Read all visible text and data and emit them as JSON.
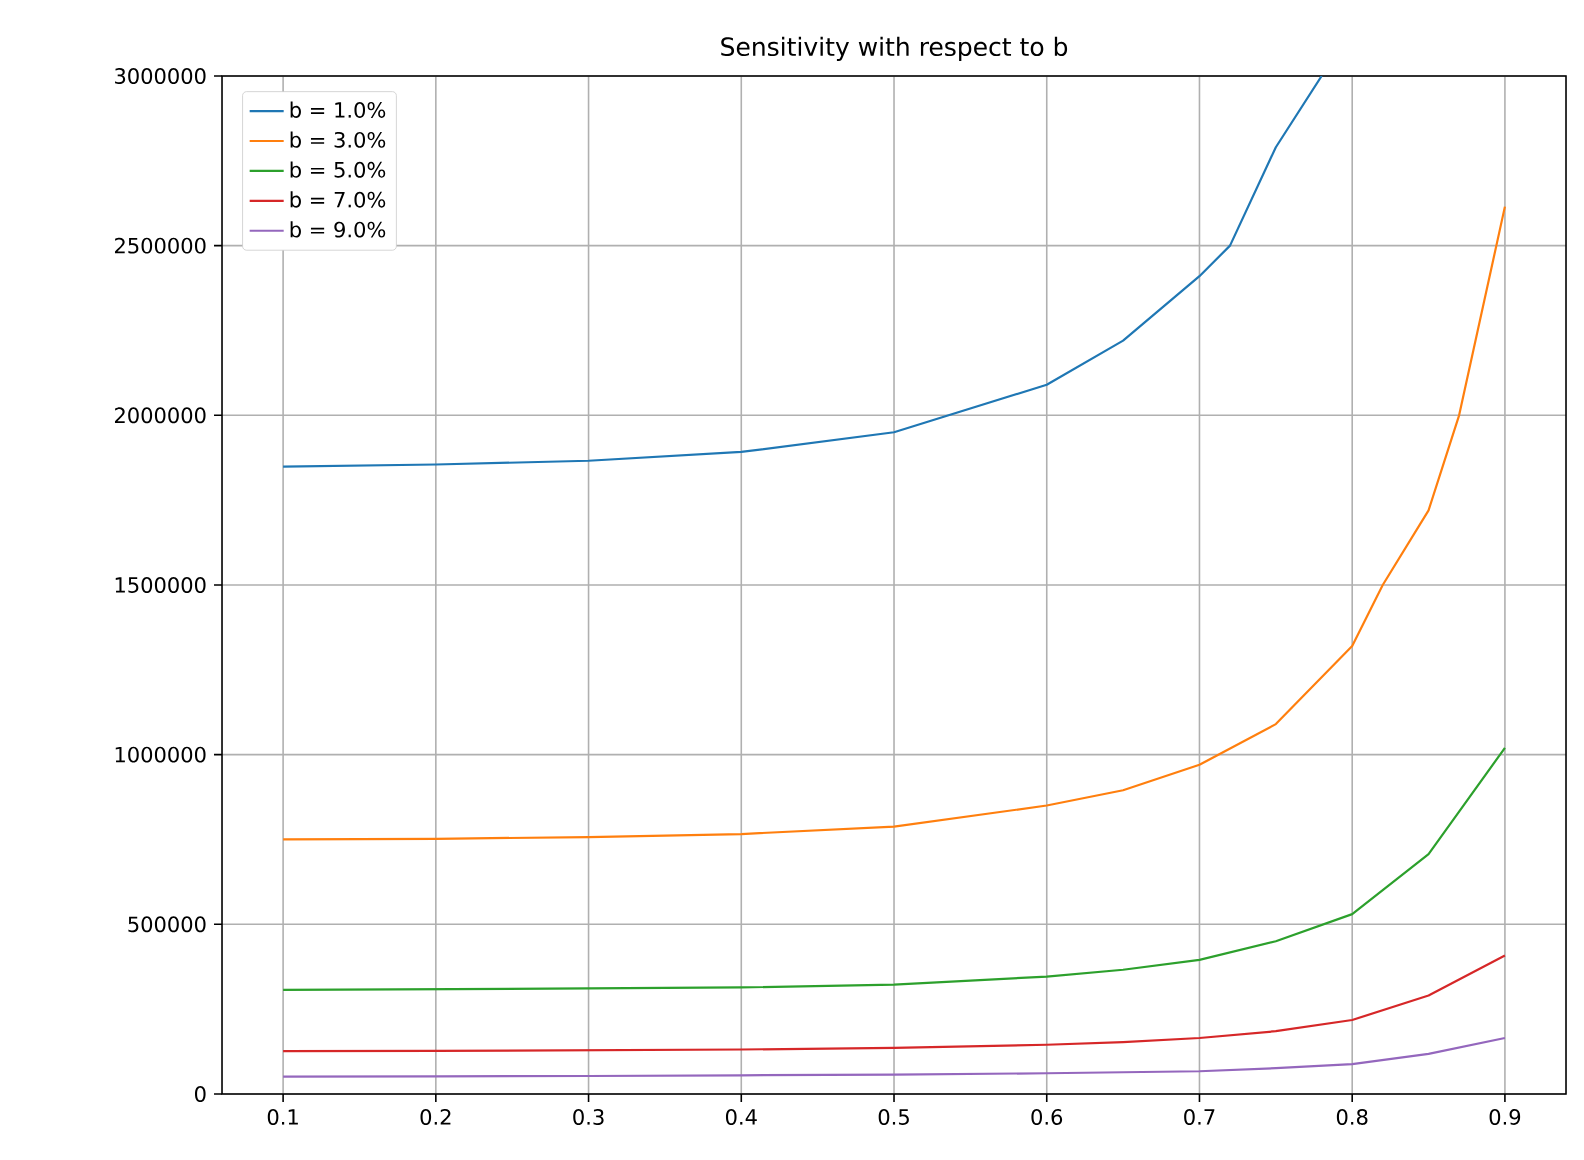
{
  "chart_data": {
    "type": "line",
    "title": "Sensitivity with respect to b",
    "xlim": [
      0.06,
      0.94
    ],
    "ylim": [
      0,
      3000000
    ],
    "xticks": [
      0.1,
      0.2,
      0.3,
      0.4,
      0.5,
      0.6,
      0.7,
      0.8,
      0.9
    ],
    "yticks": [
      0,
      500000,
      1000000,
      1500000,
      2000000,
      2500000,
      3000000
    ],
    "grid": true,
    "legend": "top left",
    "marker": "none",
    "line_style": "solid",
    "series": [
      {
        "name": "b = 1.0%",
        "color": "#1f77b4",
        "x": [
          0.1,
          0.2,
          0.3,
          0.4,
          0.5,
          0.6,
          0.65,
          0.7,
          0.72,
          0.75,
          0.78
        ],
        "values": [
          1849000,
          1855000,
          1866000,
          1892000,
          1950000,
          2090000,
          2220000,
          2410000,
          2500000,
          2790000,
          3000000
        ]
      },
      {
        "name": "b = 3.0%",
        "color": "#ff7f0e",
        "x": [
          0.1,
          0.2,
          0.3,
          0.4,
          0.5,
          0.6,
          0.65,
          0.7,
          0.75,
          0.8,
          0.82,
          0.85,
          0.87,
          0.9
        ],
        "values": [
          750000,
          752000,
          757000,
          766000,
          788000,
          850000,
          895000,
          970000,
          1090000,
          1320000,
          1500000,
          1720000,
          2000000,
          2615000
        ]
      },
      {
        "name": "b = 5.0%",
        "color": "#2ca02c",
        "x": [
          0.1,
          0.2,
          0.3,
          0.4,
          0.5,
          0.6,
          0.65,
          0.7,
          0.75,
          0.8,
          0.85,
          0.9
        ],
        "values": [
          307000,
          309000,
          311000,
          314000,
          322000,
          346000,
          366000,
          395000,
          450000,
          530000,
          707000,
          1020000
        ]
      },
      {
        "name": "b = 7.0%",
        "color": "#d62728",
        "x": [
          0.1,
          0.2,
          0.3,
          0.4,
          0.5,
          0.6,
          0.65,
          0.7,
          0.75,
          0.8,
          0.85,
          0.9
        ],
        "values": [
          126000,
          127000,
          129000,
          131000,
          136000,
          145000,
          153000,
          165000,
          185000,
          218000,
          290000,
          408000
        ]
      },
      {
        "name": "b = 9.0%",
        "color": "#9467bd",
        "x": [
          0.1,
          0.2,
          0.3,
          0.4,
          0.5,
          0.6,
          0.65,
          0.7,
          0.75,
          0.8,
          0.85,
          0.9
        ],
        "values": [
          51000,
          52000,
          53000,
          55000,
          57000,
          61000,
          64000,
          67000,
          76000,
          88000,
          118000,
          165000
        ]
      }
    ]
  }
}
